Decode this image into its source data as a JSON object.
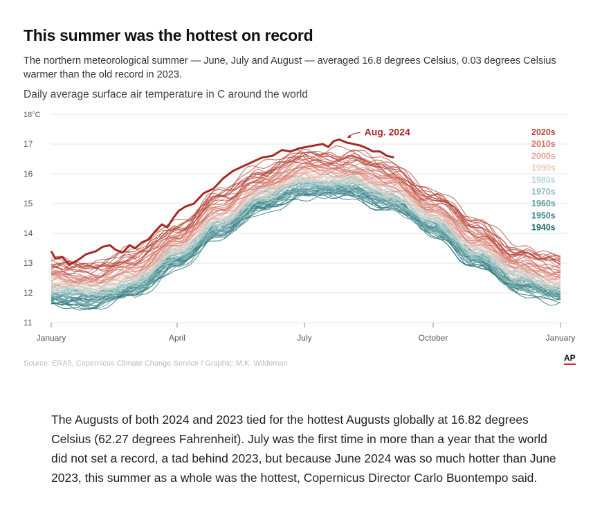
{
  "header": {
    "title": "This summer was the hottest on record",
    "subtitle": "The northern meteorological summer — June, July and August — averaged 16.8 degrees Celsius, 0.03 degrees Celsius warmer than the old record in 2023.",
    "chart_heading": "Daily average surface air temperature in C around the world"
  },
  "chart_data": {
    "type": "line",
    "title": "Daily average surface air temperature in C around the world",
    "xlabel": "",
    "ylabel": "",
    "x_unit": "day of year",
    "xlim": [
      1,
      365
    ],
    "ylim": [
      11,
      18
    ],
    "y_ticks": [
      {
        "value": 18,
        "label": "18°C"
      },
      {
        "value": 17,
        "label": "17"
      },
      {
        "value": 16,
        "label": "16"
      },
      {
        "value": 15,
        "label": "15"
      },
      {
        "value": 14,
        "label": "14"
      },
      {
        "value": 13,
        "label": "13"
      },
      {
        "value": 12,
        "label": "12"
      },
      {
        "value": 11,
        "label": "11"
      }
    ],
    "x_ticks": [
      {
        "value": 1,
        "label": "January"
      },
      {
        "value": 91,
        "label": "April"
      },
      {
        "value": 182,
        "label": "July"
      },
      {
        "value": 274,
        "label": "October"
      },
      {
        "value": 365,
        "label": "January"
      }
    ],
    "grid": "horizontal",
    "legend": "right",
    "decades": [
      {
        "label": "2020s",
        "color": "#b5453a",
        "base_anomaly": 0.85
      },
      {
        "label": "2010s",
        "color": "#d0766a",
        "base_anomaly": 0.6
      },
      {
        "label": "2000s",
        "color": "#e1a093",
        "base_anomaly": 0.4
      },
      {
        "label": "1990s",
        "color": "#edc9bd",
        "base_anomaly": 0.22
      },
      {
        "label": "1980s",
        "color": "#b9d6d6",
        "base_anomaly": 0.05
      },
      {
        "label": "1970s",
        "color": "#8fbcbd",
        "base_anomaly": -0.1
      },
      {
        "label": "1960s",
        "color": "#5f9c9e",
        "base_anomaly": -0.2
      },
      {
        "label": "1950s",
        "color": "#3f8589",
        "base_anomaly": -0.28
      },
      {
        "label": "1940s",
        "color": "#1d6b70",
        "base_anomaly": -0.35
      }
    ],
    "climatology": [
      {
        "day": 1,
        "value": 12.1
      },
      {
        "day": 32,
        "value": 12.05
      },
      {
        "day": 60,
        "value": 12.4
      },
      {
        "day": 91,
        "value": 13.35
      },
      {
        "day": 121,
        "value": 14.4
      },
      {
        "day": 152,
        "value": 15.25
      },
      {
        "day": 182,
        "value": 15.75
      },
      {
        "day": 213,
        "value": 15.75
      },
      {
        "day": 244,
        "value": 15.3
      },
      {
        "day": 274,
        "value": 14.45
      },
      {
        "day": 305,
        "value": 13.4
      },
      {
        "day": 335,
        "value": 12.55
      },
      {
        "day": 365,
        "value": 12.2
      }
    ],
    "series": [
      {
        "name": "2024",
        "color": "#a52a24",
        "values": [
          {
            "day": 1,
            "value": 13.4
          },
          {
            "day": 4,
            "value": 13.15
          },
          {
            "day": 9,
            "value": 13.2
          },
          {
            "day": 14,
            "value": 12.95
          },
          {
            "day": 20,
            "value": 13.1
          },
          {
            "day": 26,
            "value": 13.3
          },
          {
            "day": 33,
            "value": 13.4
          },
          {
            "day": 38,
            "value": 13.55
          },
          {
            "day": 43,
            "value": 13.6
          },
          {
            "day": 47,
            "value": 13.45
          },
          {
            "day": 52,
            "value": 13.35
          },
          {
            "day": 57,
            "value": 13.6
          },
          {
            "day": 61,
            "value": 13.5
          },
          {
            "day": 66,
            "value": 13.7
          },
          {
            "day": 71,
            "value": 13.8
          },
          {
            "day": 75,
            "value": 14.05
          },
          {
            "day": 80,
            "value": 14.3
          },
          {
            "day": 84,
            "value": 14.2
          },
          {
            "day": 88,
            "value": 14.5
          },
          {
            "day": 92,
            "value": 14.75
          },
          {
            "day": 97,
            "value": 14.9
          },
          {
            "day": 103,
            "value": 15.0
          },
          {
            "day": 110,
            "value": 15.35
          },
          {
            "day": 117,
            "value": 15.5
          },
          {
            "day": 124,
            "value": 15.85
          },
          {
            "day": 131,
            "value": 16.1
          },
          {
            "day": 138,
            "value": 16.25
          },
          {
            "day": 145,
            "value": 16.4
          },
          {
            "day": 152,
            "value": 16.55
          },
          {
            "day": 159,
            "value": 16.6
          },
          {
            "day": 166,
            "value": 16.8
          },
          {
            "day": 172,
            "value": 16.75
          },
          {
            "day": 178,
            "value": 16.85
          },
          {
            "day": 183,
            "value": 16.9
          },
          {
            "day": 189,
            "value": 16.95
          },
          {
            "day": 195,
            "value": 17.0
          },
          {
            "day": 199,
            "value": 16.9
          },
          {
            "day": 203,
            "value": 17.1
          },
          {
            "day": 207,
            "value": 17.15
          },
          {
            "day": 212,
            "value": 17.05
          },
          {
            "day": 217,
            "value": 17.0
          },
          {
            "day": 222,
            "value": 16.95
          },
          {
            "day": 227,
            "value": 16.85
          },
          {
            "day": 231,
            "value": 16.75
          },
          {
            "day": 236,
            "value": 16.75
          },
          {
            "day": 241,
            "value": 16.6
          },
          {
            "day": 246,
            "value": 16.55
          }
        ]
      }
    ],
    "annotations": [
      {
        "text": "Aug. 2024",
        "day": 212,
        "value": 17.15
      }
    ]
  },
  "footer": {
    "source": "Source: ERA5, Copernicus Climate Change Service / Graphic: M.K. Wildeman",
    "logo": "AP",
    "logo_color": "#e21f26"
  },
  "article": {
    "paragraph": "The Augusts of both 2024 and 2023 tied for the hottest Augusts globally at 16.82 degrees Celsius (62.27 degrees Fahrenheit). July was the first time in more than a year that the world did not set a record, a tad behind 2023, but because June 2024 was so much hotter than June 2023, this summer as a whole was the hottest, Copernicus Director Carlo Buontempo said."
  }
}
